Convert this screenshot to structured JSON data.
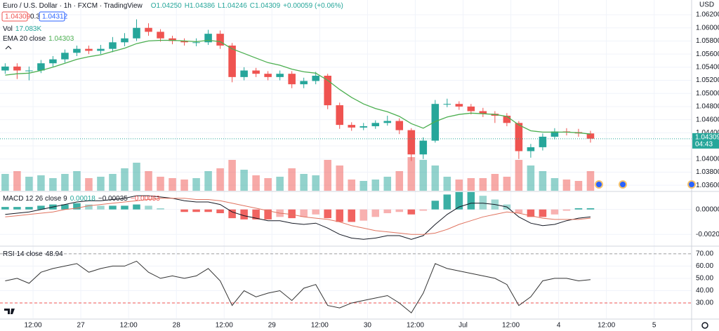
{
  "chart_data": [
    {
      "type": "candlestick",
      "title": "Euro / U.S. Dollar · 1h · FXCM · TradingView",
      "ohlc_legend": [
        "O1.04250",
        "H1.04386",
        "L1.04246",
        "C1.04309",
        "+0.00059 (+0.06%)"
      ],
      "buttons": [
        "1.04309",
        "0.3",
        "1.04312"
      ],
      "y_unit": "USD",
      "up_color": "#26a69a",
      "down_color": "#ef5350",
      "x": [
        5,
        8,
        11,
        14,
        17,
        20,
        23,
        26,
        29,
        32,
        35,
        38,
        41,
        44,
        47,
        50,
        53,
        56,
        59,
        62,
        65,
        68,
        71,
        74,
        77,
        80,
        83,
        86,
        89,
        92,
        95,
        98,
        101,
        104,
        107,
        110,
        113,
        116,
        119,
        122,
        125,
        128,
        131,
        134,
        137,
        140,
        143,
        146,
        149,
        152
      ],
      "open": [
        1.0535,
        1.0541,
        1.0535,
        1.0535,
        1.0546,
        1.0552,
        1.0562,
        1.0568,
        1.0565,
        1.0568,
        1.0578,
        1.0584,
        1.06,
        1.0594,
        1.0584,
        1.058,
        1.0578,
        1.0578,
        1.0591,
        1.0573,
        1.0525,
        1.0535,
        1.053,
        1.0525,
        1.053,
        1.0514,
        1.0519,
        1.0527,
        1.0482,
        1.0452,
        1.0448,
        1.045,
        1.0455,
        1.0458,
        1.0444,
        1.0407,
        1.0428,
        1.0484,
        1.0484,
        1.048,
        1.0473,
        1.0469,
        1.0466,
        1.0455,
        1.0412,
        1.0418,
        1.0434,
        1.0442,
        1.0441,
        1.0439
      ],
      "high": [
        1.0546,
        1.0546,
        1.0541,
        1.0551,
        1.0557,
        1.0567,
        1.0573,
        1.0573,
        1.0574,
        1.0586,
        1.0592,
        1.0613,
        1.0607,
        1.0598,
        1.0588,
        1.0584,
        1.0584,
        1.0597,
        1.0596,
        1.0577,
        1.054,
        1.0539,
        1.0534,
        1.0535,
        1.0534,
        1.0524,
        1.0533,
        1.053,
        1.0486,
        1.0456,
        1.0455,
        1.0459,
        1.0466,
        1.0462,
        1.0447,
        1.0433,
        1.049,
        1.0492,
        1.0488,
        1.0484,
        1.0478,
        1.0473,
        1.047,
        1.0458,
        1.0423,
        1.0439,
        1.0447,
        1.0447,
        1.0446,
        1.0443
      ],
      "low": [
        1.053,
        1.0522,
        1.052,
        1.0531,
        1.0541,
        1.0547,
        1.0557,
        1.056,
        1.056,
        1.0563,
        1.0572,
        1.058,
        1.0588,
        1.0579,
        1.0575,
        1.0573,
        1.0572,
        1.0574,
        1.0568,
        1.0517,
        1.052,
        1.0525,
        1.052,
        1.052,
        1.0508,
        1.0508,
        1.0514,
        1.0476,
        1.0446,
        1.0443,
        1.0444,
        1.0446,
        1.0451,
        1.0438,
        1.0397,
        1.04,
        1.0425,
        1.0479,
        1.0475,
        1.0468,
        1.0464,
        1.0455,
        1.045,
        1.04,
        1.0402,
        1.0413,
        1.043,
        1.0436,
        1.0434,
        1.0425
      ],
      "close": [
        1.0541,
        1.0535,
        1.0535,
        1.0546,
        1.0552,
        1.0562,
        1.0568,
        1.0565,
        1.0568,
        1.0578,
        1.0584,
        1.06,
        1.0594,
        1.0584,
        1.058,
        1.0578,
        1.0578,
        1.0591,
        1.0573,
        1.0525,
        1.0535,
        1.053,
        1.0525,
        1.053,
        1.0514,
        1.0519,
        1.0527,
        1.0482,
        1.0452,
        1.0448,
        1.045,
        1.0455,
        1.0458,
        1.0444,
        1.0407,
        1.0428,
        1.0484,
        1.0484,
        1.048,
        1.0473,
        1.0469,
        1.0466,
        1.0455,
        1.0412,
        1.0418,
        1.0434,
        1.0442,
        1.0441,
        1.0439,
        1.0431
      ],
      "series": [
        {
          "name": "EMA 20 close",
          "legend_value": "1.04303",
          "color": "#4caf50",
          "values": [
            1.0528,
            1.053,
            1.0531,
            1.0535,
            1.054,
            1.0546,
            1.0552,
            1.0556,
            1.0559,
            1.0564,
            1.0569,
            1.0576,
            1.058,
            1.0581,
            1.0581,
            1.058,
            1.0579,
            1.0581,
            1.0579,
            1.0568,
            1.0561,
            1.0554,
            1.0547,
            1.0543,
            1.0537,
            1.0533,
            1.0531,
            1.052,
            1.0506,
            1.0494,
            1.0484,
            1.0477,
            1.0472,
            1.0465,
            1.0454,
            1.0447,
            1.0457,
            1.0464,
            1.0468,
            1.047,
            1.0469,
            1.0468,
            1.0465,
            1.0452,
            1.0443,
            1.0441,
            1.0441,
            1.0441,
            1.044,
            1.0438
          ]
        }
      ],
      "volume": {
        "name": "Vol",
        "legend_value": "17.083K",
        "ylim": [
          0,
          30
        ],
        "values": [
          12,
          14,
          10,
          11,
          9,
          12,
          14,
          9,
          10,
          12,
          16,
          20,
          14,
          10,
          9,
          8,
          9,
          14,
          16,
          22,
          15,
          11,
          9,
          10,
          16,
          12,
          11,
          22,
          18,
          8,
          7,
          8,
          10,
          14,
          24,
          22,
          18,
          10,
          8,
          9,
          9,
          12,
          10,
          22,
          18,
          14,
          9,
          8,
          7,
          14
        ]
      },
      "last_price": {
        "value": 1.04309,
        "label": "1.04309",
        "countdown": "04:43"
      },
      "xlim": [
        3.7,
        177.4
      ],
      "xticks": [
        {
          "value": 12,
          "label": "12:00"
        },
        {
          "value": 24,
          "label": "27"
        },
        {
          "value": 36,
          "label": "12:00"
        },
        {
          "value": 48,
          "label": "28"
        },
        {
          "value": 60,
          "label": "12:00"
        },
        {
          "value": 72,
          "label": "29"
        },
        {
          "value": 84,
          "label": "12:00"
        },
        {
          "value": 96,
          "label": "30"
        },
        {
          "value": 108,
          "label": "12:00"
        },
        {
          "value": 120,
          "label": "Jul"
        },
        {
          "value": 132,
          "label": "12:00"
        },
        {
          "value": 144,
          "label": "4"
        },
        {
          "value": 156,
          "label": "12:00"
        },
        {
          "value": 168,
          "label": "5"
        }
      ],
      "ylim": [
        1.03516,
        1.06425
      ],
      "yticks": [
        {
          "value": 1.036,
          "label": "1.03600"
        },
        {
          "value": 1.038,
          "label": "1.03800"
        },
        {
          "value": 1.04,
          "label": "1.04000"
        },
        {
          "value": 1.042,
          "label": "1.04200"
        },
        {
          "value": 1.044,
          "label": "1.04400"
        },
        {
          "value": 1.046,
          "label": "1.04600"
        },
        {
          "value": 1.048,
          "label": "1.04800"
        },
        {
          "value": 1.05,
          "label": "1.05000"
        },
        {
          "value": 1.052,
          "label": "1.05200"
        },
        {
          "value": 1.054,
          "label": "1.05400"
        },
        {
          "value": 1.056,
          "label": "1.05600"
        },
        {
          "value": 1.058,
          "label": "1.05800"
        },
        {
          "value": 1.06,
          "label": "1.06000"
        },
        {
          "value": 1.062,
          "label": "1.06200"
        }
      ],
      "grid": true
    },
    {
      "type": "macd",
      "title": "MACD 12 26 close 9",
      "legend_values": [
        "0.00018",
        "−0.00035",
        "−0.00053"
      ],
      "histogram": {
        "color_up": "#26a69a",
        "color_down": "#ef5350",
        "values": [
          0.0002,
          0.0002,
          0.0002,
          0.0003,
          0.0004,
          0.0004,
          0.0005,
          0.0004,
          0.0003,
          0.0003,
          0.0003,
          0.0004,
          0.0003,
          0.0001,
          0.0,
          -0.0002,
          -0.0002,
          -0.0002,
          -0.0003,
          -0.0007,
          -0.0008,
          -0.0008,
          -0.0008,
          -0.0006,
          -0.0007,
          -0.0006,
          -0.0004,
          -0.0007,
          -0.001,
          -0.001,
          -0.0009,
          -0.0006,
          -0.0003,
          -0.0002,
          -0.0004,
          -0.0001,
          0.0007,
          0.0012,
          0.0014,
          0.0014,
          0.0011,
          0.0008,
          0.0004,
          -0.0003,
          -0.0006,
          -0.0006,
          -0.0004,
          -0.0001,
          0.0001,
          0.0001
        ]
      },
      "macd": {
        "color": "#131722",
        "values": [
          -0.0004,
          -0.0003,
          -0.0002,
          0.0,
          0.0002,
          0.0004,
          0.0006,
          0.0007,
          0.0007,
          0.0008,
          0.0009,
          0.0011,
          0.0011,
          0.001,
          0.0009,
          0.0007,
          0.0006,
          0.0006,
          0.0004,
          -0.0002,
          -0.0005,
          -0.0007,
          -0.0009,
          -0.0009,
          -0.0011,
          -0.0012,
          -0.0011,
          -0.0015,
          -0.002,
          -0.0023,
          -0.0024,
          -0.0023,
          -0.0021,
          -0.0021,
          -0.0024,
          -0.0021,
          -0.0012,
          -0.0004,
          0.0002,
          0.0005,
          0.0005,
          0.0004,
          0.0002,
          -0.0006,
          -0.0011,
          -0.0013,
          -0.0012,
          -0.0009,
          -0.0007,
          -0.0006
        ]
      },
      "signal": {
        "color": "#e0735f",
        "values": [
          -0.0006,
          -0.0005,
          -0.0004,
          -0.0003,
          -0.0002,
          0.0,
          0.0001,
          0.0003,
          0.0004,
          0.0005,
          0.0006,
          0.0007,
          0.0008,
          0.0009,
          0.0009,
          0.0009,
          0.0008,
          0.0008,
          0.0007,
          0.0005,
          0.0003,
          0.0001,
          -0.0001,
          -0.0003,
          -0.0004,
          -0.0006,
          -0.0007,
          -0.0008,
          -0.001,
          -0.0013,
          -0.0015,
          -0.0017,
          -0.0018,
          -0.0019,
          -0.002,
          -0.002,
          -0.0019,
          -0.0016,
          -0.0012,
          -0.0009,
          -0.0006,
          -0.0004,
          -0.0002,
          -0.0003,
          -0.0005,
          -0.0007,
          -0.0008,
          -0.0008,
          -0.0008,
          -0.0007
        ]
      },
      "ylim": [
        -0.00289,
        0.00139
      ],
      "yticks": [
        {
          "value": 0,
          "label": "0.00000"
        },
        {
          "value": -0.002,
          "label": "-0.00200"
        }
      ],
      "grid": true
    },
    {
      "type": "line",
      "title": "RSI 14 close",
      "legend_value": "48.94",
      "color": "#333333",
      "values": [
        48,
        50,
        46,
        55,
        58,
        60,
        62,
        55,
        58,
        60,
        60,
        64,
        55,
        50,
        52,
        50,
        52,
        58,
        48,
        28,
        40,
        35,
        38,
        40,
        32,
        42,
        45,
        28,
        26,
        30,
        32,
        34,
        36,
        30,
        22,
        38,
        62,
        58,
        56,
        54,
        52,
        50,
        45,
        28,
        35,
        48,
        50,
        50,
        48,
        49
      ],
      "bands": [
        70,
        30
      ],
      "band_colors": [
        "#9e9e9e",
        "#ef5350"
      ],
      "ylim": [
        17.5,
        75.6
      ],
      "yticks": [
        {
          "value": 30,
          "label": "30.00"
        },
        {
          "value": 40,
          "label": "40.00"
        },
        {
          "value": 50,
          "label": "50.00"
        },
        {
          "value": 60,
          "label": "60.00"
        },
        {
          "value": 70,
          "label": "70.00"
        }
      ],
      "grid": true
    }
  ]
}
